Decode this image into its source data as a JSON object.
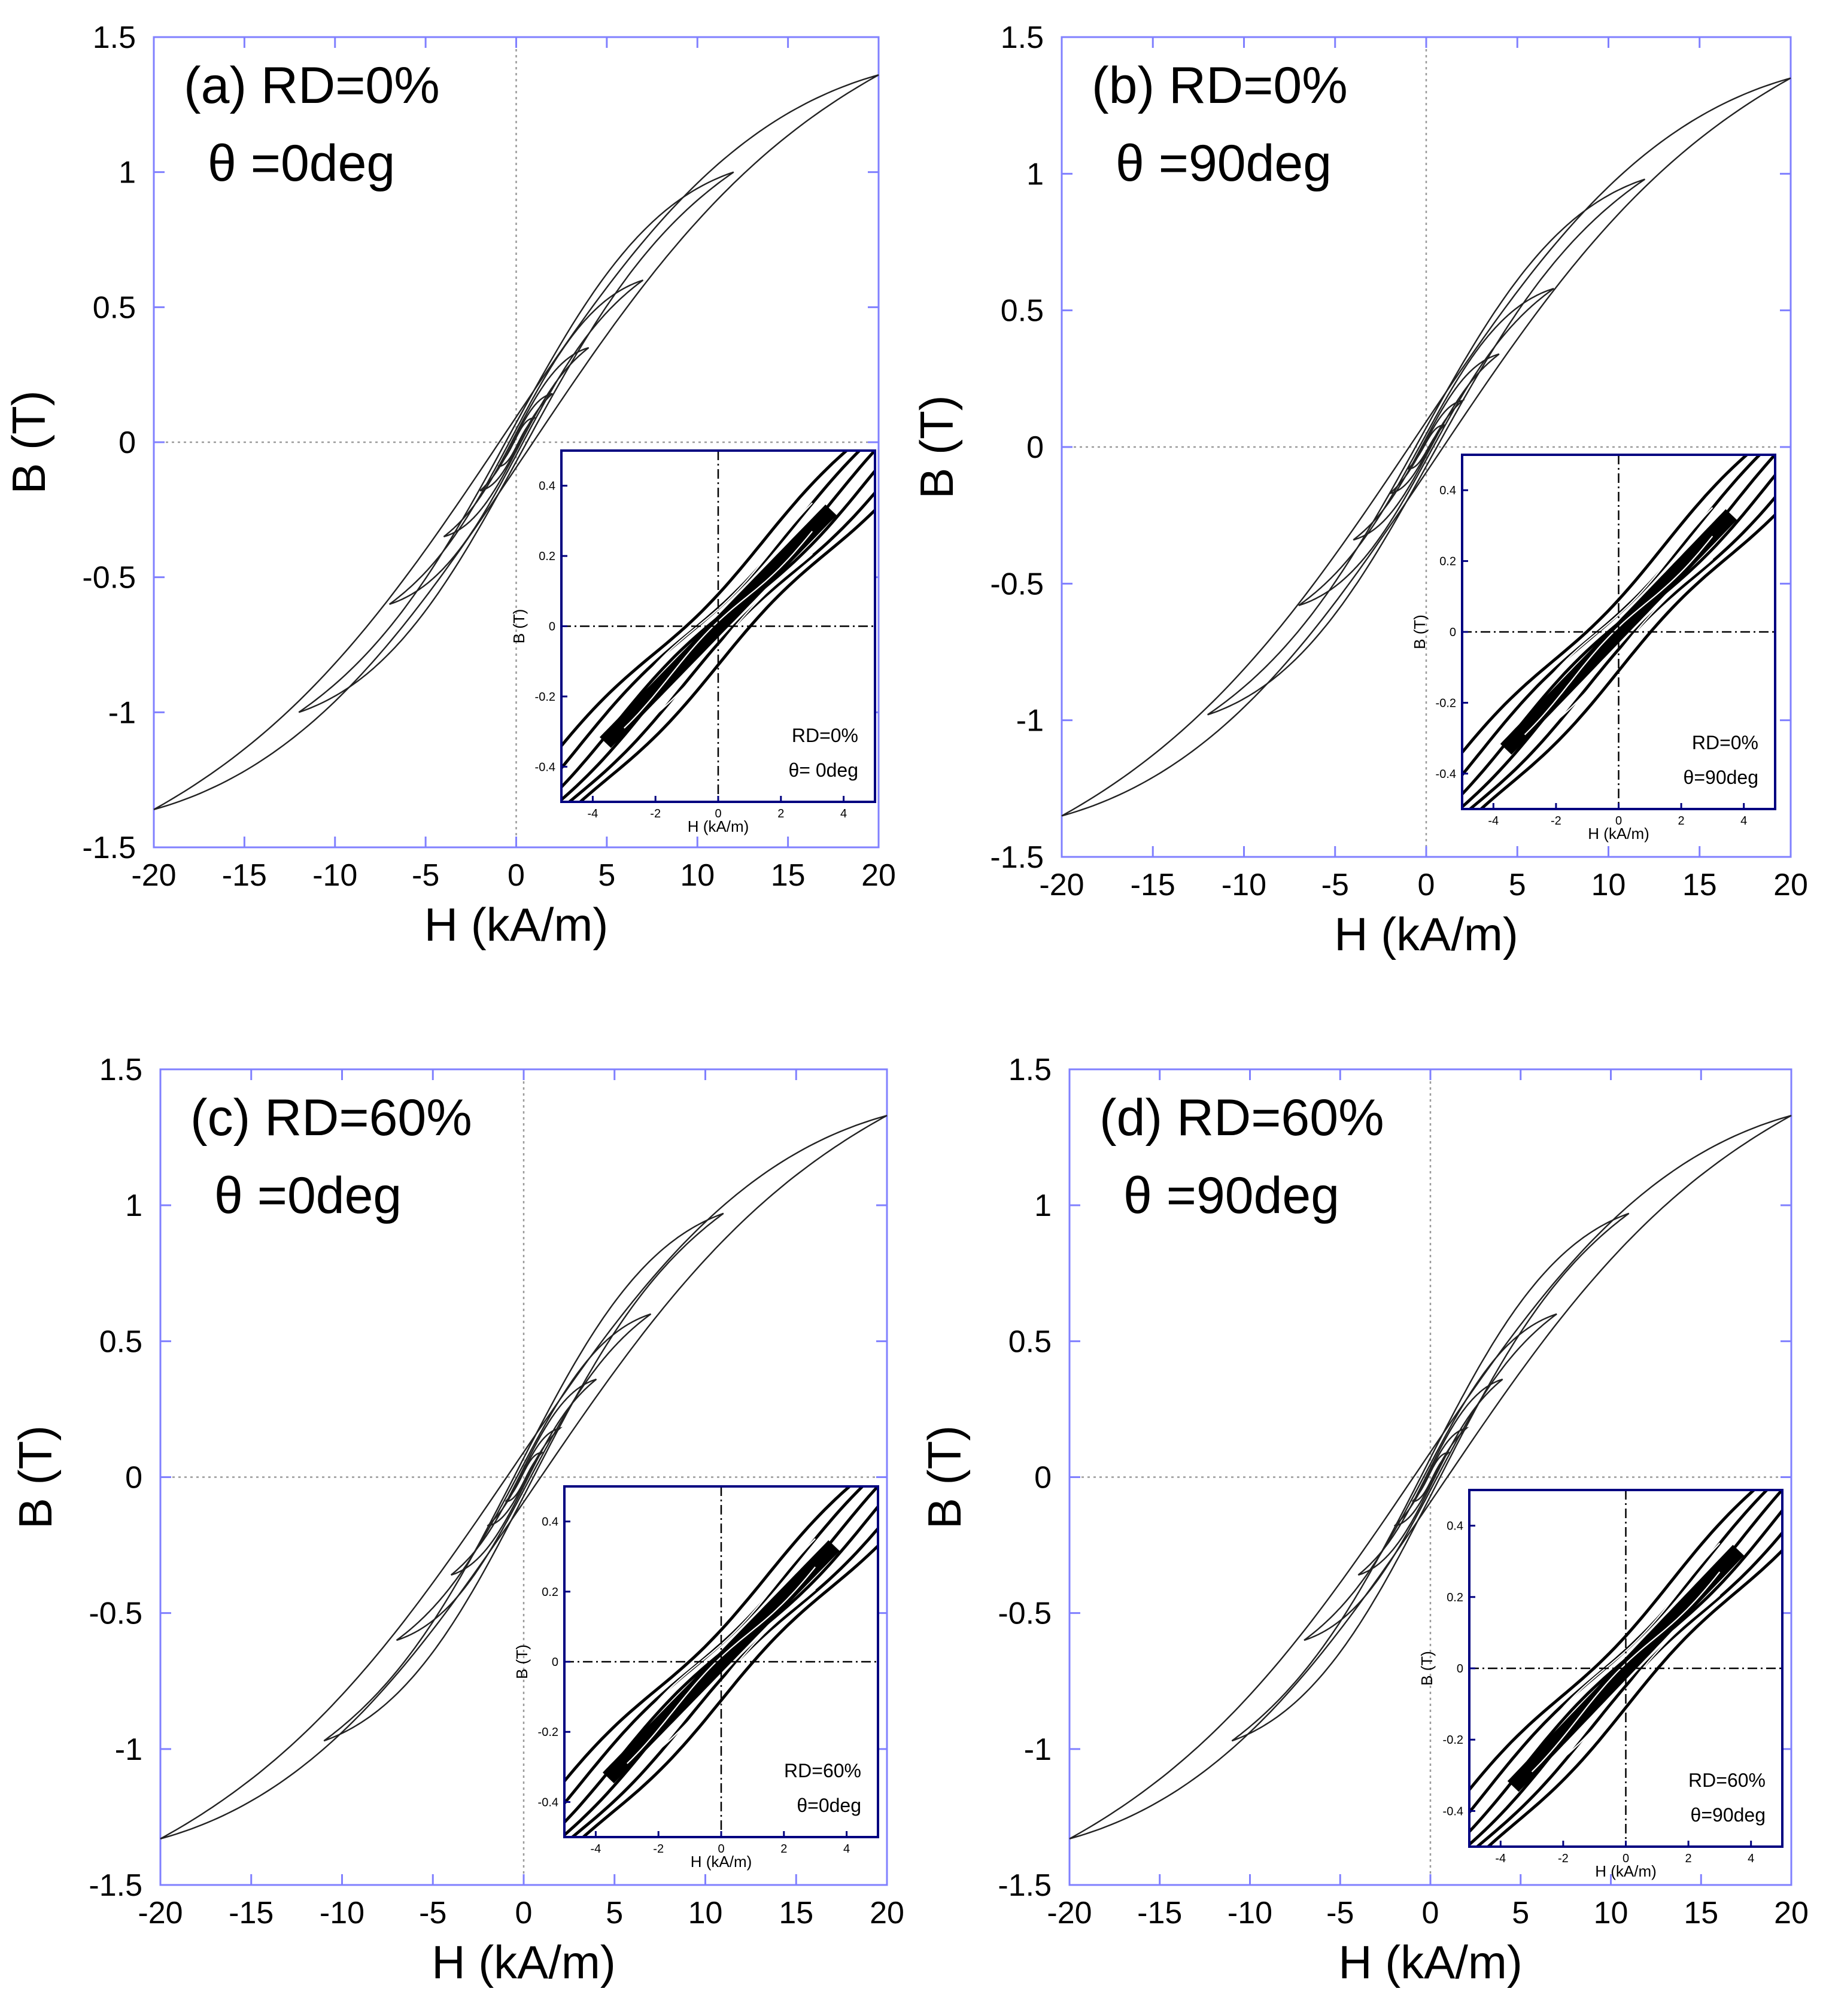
{
  "chart_data": [
    {
      "type": "line",
      "panel": "a",
      "title": "",
      "annotation": [
        "(a) RD=0%",
        "θ =0deg"
      ],
      "xlabel": "H (kA/m)",
      "ylabel": "B (T)",
      "xlim": [
        -20,
        20
      ],
      "ylim": [
        -1.5,
        1.5
      ],
      "xticks": [
        "-20",
        "-15",
        "-10",
        "-5",
        "0",
        "5",
        "10",
        "15",
        "20"
      ],
      "yticks": [
        "1.5",
        "1",
        "0.5",
        "0",
        "-0.5",
        "-1",
        "-1.5"
      ],
      "loops": [
        {
          "Hmax": 20,
          "Bmax": 1.36
        },
        {
          "Hmax": 12,
          "Bmax": 1.0
        },
        {
          "Hmax": 7,
          "Bmax": 0.6
        },
        {
          "Hmax": 4,
          "Bmax": 0.35
        },
        {
          "Hmax": 2,
          "Bmax": 0.18
        },
        {
          "Hmax": 1,
          "Bmax": 0.09
        }
      ],
      "inset": {
        "type": "line",
        "annotation": [
          "RD=0%",
          "θ= 0deg"
        ],
        "xlabel": "H (kA/m)",
        "ylabel": "B (T)",
        "xlim": [
          -5,
          5
        ],
        "ylim": [
          -0.5,
          0.5
        ],
        "xticks": [
          "-4",
          "-2",
          "0",
          "2",
          "4"
        ],
        "yticks": [
          "0.4",
          "0.2",
          "0",
          "-0.2",
          "-0.4"
        ]
      }
    },
    {
      "type": "line",
      "panel": "b",
      "title": "",
      "annotation": [
        "(b) RD=0%",
        "θ =90deg"
      ],
      "xlabel": "H (kA/m)",
      "ylabel": "B (T)",
      "xlim": [
        -20,
        20
      ],
      "ylim": [
        -1.5,
        1.5
      ],
      "xticks": [
        "-20",
        "-15",
        "-10",
        "-5",
        "0",
        "5",
        "10",
        "15",
        "20"
      ],
      "yticks": [
        "1.5",
        "1",
        "0.5",
        "0",
        "-0.5",
        "-1",
        "-1.5"
      ],
      "loops": [
        {
          "Hmax": 20,
          "Bmax": 1.35
        },
        {
          "Hmax": 12,
          "Bmax": 0.98
        },
        {
          "Hmax": 7,
          "Bmax": 0.58
        },
        {
          "Hmax": 4,
          "Bmax": 0.34
        },
        {
          "Hmax": 2,
          "Bmax": 0.17
        },
        {
          "Hmax": 1,
          "Bmax": 0.08
        }
      ],
      "inset": {
        "type": "line",
        "annotation": [
          "RD=0%",
          "θ=90deg"
        ],
        "xlabel": "H (kA/m)",
        "ylabel": "B (T)",
        "xlim": [
          -5,
          5
        ],
        "ylim": [
          -0.5,
          0.5
        ],
        "xticks": [
          "-4",
          "-2",
          "0",
          "2",
          "4"
        ],
        "yticks": [
          "0.4",
          "0.2",
          "0",
          "-0.2",
          "-0.4"
        ]
      }
    },
    {
      "type": "line",
      "panel": "c",
      "title": "",
      "annotation": [
        "(c) RD=60%",
        "θ =0deg"
      ],
      "xlabel": "H (kA/m)",
      "ylabel": "B (T)",
      "xlim": [
        -20,
        20
      ],
      "ylim": [
        -1.5,
        1.5
      ],
      "xticks": [
        "-20",
        "-15",
        "-10",
        "-5",
        "0",
        "5",
        "10",
        "15",
        "20"
      ],
      "yticks": [
        "1.5",
        "1",
        "0.5",
        "0",
        "-0.5",
        "-1",
        "-1.5"
      ],
      "loops": [
        {
          "Hmax": 20,
          "Bmax": 1.33
        },
        {
          "Hmax": 11,
          "Bmax": 0.97
        },
        {
          "Hmax": 7,
          "Bmax": 0.6
        },
        {
          "Hmax": 4,
          "Bmax": 0.36
        },
        {
          "Hmax": 2,
          "Bmax": 0.18
        },
        {
          "Hmax": 1,
          "Bmax": 0.09
        }
      ],
      "inset": {
        "type": "line",
        "annotation": [
          "RD=60%",
          "θ=0deg"
        ],
        "xlabel": "H (kA/m)",
        "ylabel": "B (T)",
        "xlim": [
          -5,
          5
        ],
        "ylim": [
          -0.5,
          0.5
        ],
        "xticks": [
          "-4",
          "-2",
          "0",
          "2",
          "4"
        ],
        "yticks": [
          "0.4",
          "0.2",
          "0",
          "-0.2",
          "-0.4"
        ]
      }
    },
    {
      "type": "line",
      "panel": "d",
      "title": "",
      "annotation": [
        "(d) RD=60%",
        "θ =90deg"
      ],
      "xlabel": "H (kA/m)",
      "ylabel": "B (T)",
      "xlim": [
        -20,
        20
      ],
      "ylim": [
        -1.5,
        1.5
      ],
      "xticks": [
        "-20",
        "-15",
        "-10",
        "-5",
        "0",
        "5",
        "10",
        "15",
        "20"
      ],
      "yticks": [
        "1.5",
        "1",
        "0.5",
        "0",
        "-0.5",
        "-1",
        "-1.5"
      ],
      "loops": [
        {
          "Hmax": 20,
          "Bmax": 1.33
        },
        {
          "Hmax": 11,
          "Bmax": 0.97
        },
        {
          "Hmax": 7,
          "Bmax": 0.6
        },
        {
          "Hmax": 4,
          "Bmax": 0.36
        },
        {
          "Hmax": 2,
          "Bmax": 0.18
        },
        {
          "Hmax": 1,
          "Bmax": 0.09
        }
      ],
      "inset": {
        "type": "line",
        "annotation": [
          "RD=60%",
          "θ=90deg"
        ],
        "xlabel": "H (kA/m)",
        "ylabel": "B (T)",
        "xlim": [
          -5,
          5
        ],
        "ylim": [
          -0.5,
          0.5
        ],
        "xticks": [
          "-4",
          "-2",
          "0",
          "2",
          "4"
        ],
        "yticks": [
          "0.4",
          "0.2",
          "0",
          "-0.2",
          "-0.4"
        ]
      }
    }
  ]
}
